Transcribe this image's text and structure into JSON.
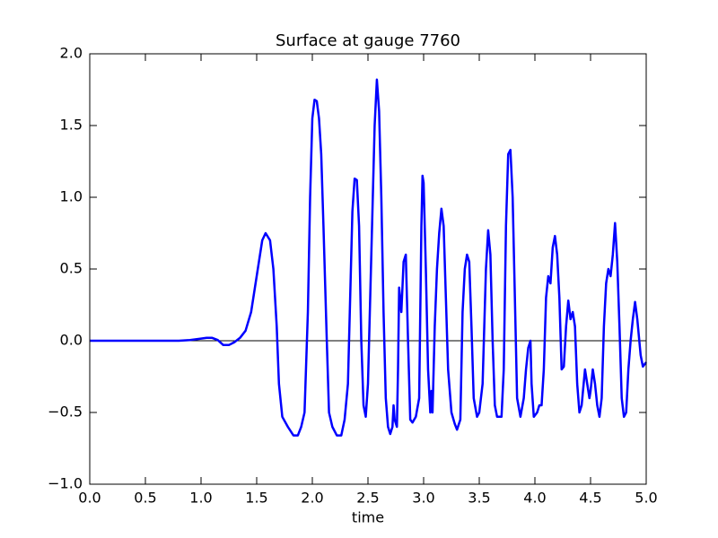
{
  "chart_data": {
    "type": "line",
    "title": "Surface at gauge 7760",
    "xlabel": "time",
    "xlim": [
      0,
      5
    ],
    "ylim": [
      -1,
      2
    ],
    "xticks": [
      {
        "value": 0,
        "label": "0.0"
      },
      0.5,
      {
        "value": 1,
        "label": "1.0"
      },
      1.5,
      {
        "value": 2,
        "label": "2.0"
      },
      2.5,
      {
        "value": 3,
        "label": "3.0"
      },
      3.5,
      {
        "value": 4,
        "label": "4.0"
      },
      4.5,
      {
        "value": 5,
        "label": "5.0"
      }
    ],
    "yticks": [
      {
        "value": -1,
        "label": "−1.0"
      },
      {
        "value": -0.5,
        "label": "−0.5"
      },
      {
        "value": 0,
        "label": "0.0"
      },
      0.5,
      {
        "value": 1,
        "label": "1.0"
      },
      1.5,
      {
        "value": 2,
        "label": "2.0"
      }
    ],
    "hline": 0,
    "hline_color": "#000000",
    "grid": false,
    "series": [
      {
        "color": "#0000ff",
        "x": [
          0,
          0.8,
          0.9,
          1.0,
          1.05,
          1.1,
          1.15,
          1.2,
          1.25,
          1.3,
          1.35,
          1.4,
          1.45,
          1.5,
          1.55,
          1.58,
          1.62,
          1.65,
          1.68,
          1.7,
          1.73,
          1.78,
          1.83,
          1.87,
          1.9,
          1.93,
          1.96,
          1.98,
          2.0,
          2.02,
          2.04,
          2.06,
          2.08,
          2.1,
          2.13,
          2.15,
          2.18,
          2.22,
          2.26,
          2.29,
          2.32,
          2.34,
          2.36,
          2.38,
          2.4,
          2.42,
          2.44,
          2.46,
          2.48,
          2.5,
          2.52,
          2.54,
          2.56,
          2.58,
          2.6,
          2.62,
          2.64,
          2.66,
          2.68,
          2.7,
          2.72,
          2.73,
          2.74,
          2.76,
          2.77,
          2.78,
          2.8,
          2.82,
          2.84,
          2.86,
          2.88,
          2.9,
          2.93,
          2.96,
          2.98,
          2.99,
          3.0,
          3.02,
          3.04,
          3.06,
          3.07,
          3.08,
          3.1,
          3.12,
          3.14,
          3.16,
          3.18,
          3.2,
          3.22,
          3.25,
          3.28,
          3.3,
          3.33,
          3.35,
          3.37,
          3.39,
          3.41,
          3.43,
          3.45,
          3.48,
          3.5,
          3.53,
          3.56,
          3.58,
          3.6,
          3.62,
          3.64,
          3.66,
          3.7,
          3.72,
          3.74,
          3.76,
          3.78,
          3.8,
          3.82,
          3.84,
          3.87,
          3.9,
          3.92,
          3.94,
          3.96,
          3.97,
          3.99,
          4.02,
          4.04,
          4.06,
          4.08,
          4.1,
          4.12,
          4.14,
          4.16,
          4.18,
          4.2,
          4.22,
          4.24,
          4.26,
          4.28,
          4.3,
          4.32,
          4.34,
          4.36,
          4.38,
          4.4,
          4.42,
          4.45,
          4.47,
          4.49,
          4.5,
          4.52,
          4.54,
          4.56,
          4.58,
          4.6,
          4.62,
          4.64,
          4.66,
          4.68,
          4.7,
          4.72,
          4.74,
          4.76,
          4.78,
          4.8,
          4.82,
          4.84,
          4.86,
          4.88,
          4.9,
          4.92,
          4.95,
          4.97,
          5.0
        ],
        "values": [
          0,
          0,
          0.005,
          0.015,
          0.02,
          0.02,
          0.005,
          -0.03,
          -0.03,
          -0.01,
          0.02,
          0.07,
          0.2,
          0.45,
          0.7,
          0.75,
          0.7,
          0.5,
          0.1,
          -0.3,
          -0.53,
          -0.6,
          -0.66,
          -0.66,
          -0.6,
          -0.5,
          0.2,
          1.0,
          1.55,
          1.68,
          1.67,
          1.55,
          1.3,
          0.8,
          0.0,
          -0.5,
          -0.6,
          -0.66,
          -0.66,
          -0.55,
          -0.3,
          0.3,
          0.9,
          1.13,
          1.12,
          0.8,
          0.0,
          -0.45,
          -0.53,
          -0.3,
          0.3,
          0.9,
          1.5,
          1.82,
          1.6,
          1.0,
          0.2,
          -0.4,
          -0.6,
          -0.65,
          -0.6,
          -0.45,
          -0.55,
          -0.6,
          -0.2,
          0.37,
          0.2,
          0.55,
          0.6,
          0.0,
          -0.55,
          -0.57,
          -0.53,
          -0.4,
          0.8,
          1.15,
          1.1,
          0.5,
          -0.2,
          -0.5,
          -0.35,
          -0.5,
          0.1,
          0.5,
          0.75,
          0.92,
          0.8,
          0.3,
          -0.2,
          -0.5,
          -0.58,
          -0.62,
          -0.55,
          0.2,
          0.5,
          0.6,
          0.55,
          0.1,
          -0.4,
          -0.53,
          -0.5,
          -0.3,
          0.5,
          0.77,
          0.6,
          0.0,
          -0.45,
          -0.53,
          -0.53,
          -0.2,
          0.8,
          1.3,
          1.33,
          1.0,
          0.3,
          -0.4,
          -0.53,
          -0.4,
          -0.2,
          -0.05,
          0.0,
          -0.3,
          -0.53,
          -0.5,
          -0.45,
          -0.45,
          -0.2,
          0.3,
          0.45,
          0.4,
          0.65,
          0.73,
          0.6,
          0.3,
          -0.2,
          -0.18,
          0.1,
          0.28,
          0.15,
          0.2,
          0.1,
          -0.3,
          -0.5,
          -0.45,
          -0.2,
          -0.3,
          -0.4,
          -0.35,
          -0.2,
          -0.3,
          -0.45,
          -0.53,
          -0.4,
          0.1,
          0.4,
          0.5,
          0.45,
          0.6,
          0.82,
          0.55,
          0.1,
          -0.4,
          -0.53,
          -0.5,
          -0.2,
          0.0,
          0.15,
          0.27,
          0.15,
          -0.1,
          -0.18,
          -0.15
        ]
      }
    ]
  }
}
